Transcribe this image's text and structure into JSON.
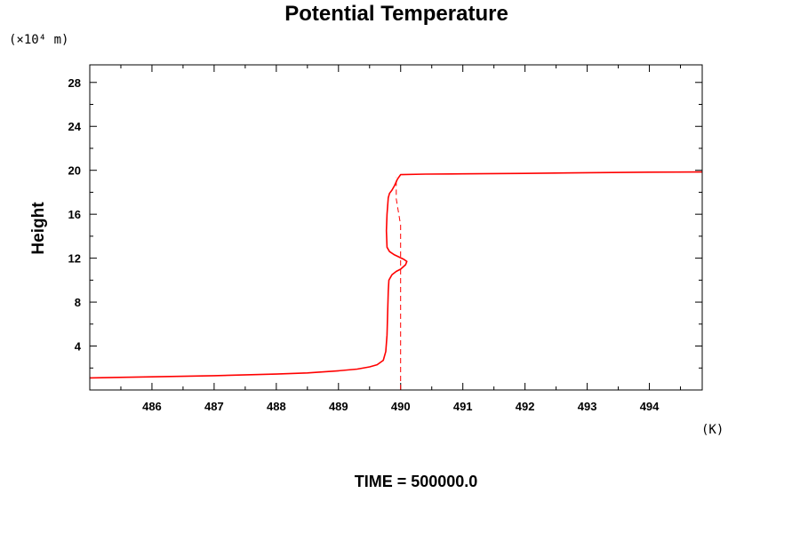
{
  "chart_data": {
    "type": "line",
    "title": "Potential Temperature",
    "ylabel": "Height",
    "yunit": "(×10⁴ m)",
    "xunit": "(K)",
    "footer": "TIME = 500000.0",
    "xlim": [
      485.0,
      494.85
    ],
    "ylim": [
      0.0,
      29.6
    ],
    "xticks": [
      486,
      487,
      488,
      489,
      490,
      491,
      492,
      493,
      494
    ],
    "xtick_labels": [
      "486",
      "487",
      "488",
      "489",
      "490",
      "491",
      "492",
      "493",
      "494"
    ],
    "yticks": [
      4,
      8,
      12,
      16,
      20,
      24,
      28
    ],
    "ytick_labels": [
      "4",
      "8",
      "12",
      "16",
      "20",
      "24",
      "28"
    ],
    "grid": false,
    "colors": {
      "series": "#ff0000",
      "axis": "#000000"
    },
    "series": [
      {
        "style": "solid",
        "x": [
          485.0,
          486.0,
          487.0,
          488.0,
          488.5,
          489.0,
          489.3,
          489.5,
          489.62,
          489.72,
          489.76,
          489.78,
          489.79,
          489.8,
          489.81,
          489.86,
          489.93,
          490.0,
          490.08,
          490.1,
          490.05,
          489.9,
          489.82,
          489.78,
          489.77,
          489.78,
          489.8,
          489.82,
          489.86,
          489.9,
          489.95,
          490.0,
          490.4,
          491.0,
          492.0,
          493.0,
          494.0,
          494.85
        ],
        "y": [
          1.1,
          1.2,
          1.3,
          1.45,
          1.55,
          1.75,
          1.9,
          2.1,
          2.3,
          2.7,
          3.5,
          5.0,
          7.0,
          9.0,
          10.0,
          10.5,
          10.8,
          11.0,
          11.4,
          11.7,
          11.9,
          12.3,
          12.6,
          13.0,
          14.5,
          16.0,
          17.5,
          17.9,
          18.2,
          18.6,
          19.2,
          19.6,
          19.65,
          19.68,
          19.72,
          19.78,
          19.83,
          19.85
        ]
      },
      {
        "style": "dashed",
        "x": [
          490.0,
          490.0,
          489.93,
          489.93
        ],
        "y": [
          0.0,
          15.0,
          17.4,
          19.4
        ]
      }
    ]
  }
}
